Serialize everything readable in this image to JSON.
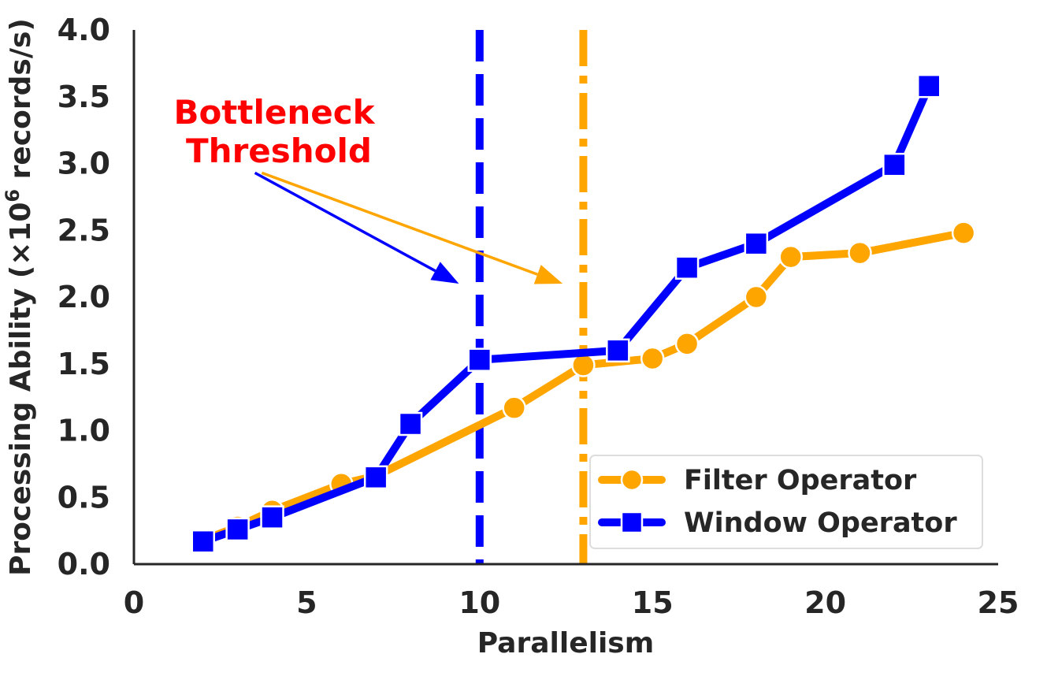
{
  "chart_data": {
    "type": "line",
    "title": "",
    "xlabel": "Parallelism",
    "ylabel": "Processing Ability (×10⁶ records/s)",
    "ylabel_parts": {
      "prefix": "Processing Ability (×10",
      "superscript": "6",
      "suffix": " records/s)"
    },
    "xlim": [
      0,
      25
    ],
    "ylim": [
      0,
      4.0
    ],
    "xticks": [
      0,
      5,
      10,
      15,
      20,
      25
    ],
    "xtick_labels": [
      "0",
      "5",
      "10",
      "15",
      "20",
      "25"
    ],
    "yticks": [
      0,
      0.5,
      1.0,
      1.5,
      2.0,
      2.5,
      3.0,
      3.5,
      4.0
    ],
    "ytick_labels": [
      "0.0",
      "0.5",
      "1.0",
      "1.5",
      "2.0",
      "2.5",
      "3.0",
      "3.5",
      "4.0"
    ],
    "grid": false,
    "legend_position": "lower-right",
    "series": [
      {
        "name": "Filter Operator",
        "color": "#FFA500",
        "marker": "circle",
        "x": [
          2,
          3,
          4,
          6,
          7,
          11,
          13,
          15,
          16,
          18,
          19,
          21,
          24
        ],
        "y": [
          0.18,
          0.28,
          0.4,
          0.6,
          0.66,
          1.17,
          1.49,
          1.54,
          1.65,
          2.0,
          2.3,
          2.33,
          2.48
        ]
      },
      {
        "name": "Window Operator",
        "color": "#0000FF",
        "marker": "square",
        "x": [
          2,
          3,
          4,
          7,
          8,
          10,
          14,
          16,
          18,
          22,
          23
        ],
        "y": [
          0.17,
          0.26,
          0.35,
          0.65,
          1.05,
          1.53,
          1.6,
          2.22,
          2.4,
          2.99,
          3.58
        ]
      }
    ],
    "vlines": [
      {
        "x": 10,
        "color": "#0000FF",
        "style": "dashed"
      },
      {
        "x": 13,
        "color": "#FFA500",
        "style": "dashdot"
      }
    ],
    "annotation": {
      "lines": [
        "Bottleneck",
        "Threshold"
      ],
      "color": "#FF0000",
      "arrows": [
        {
          "color": "#0000FF",
          "from": [
            3.5,
            2.93
          ],
          "to": [
            9.4,
            2.1
          ]
        },
        {
          "color": "#FFA500",
          "from": [
            3.7,
            2.93
          ],
          "to": [
            12.4,
            2.1
          ]
        }
      ]
    }
  }
}
